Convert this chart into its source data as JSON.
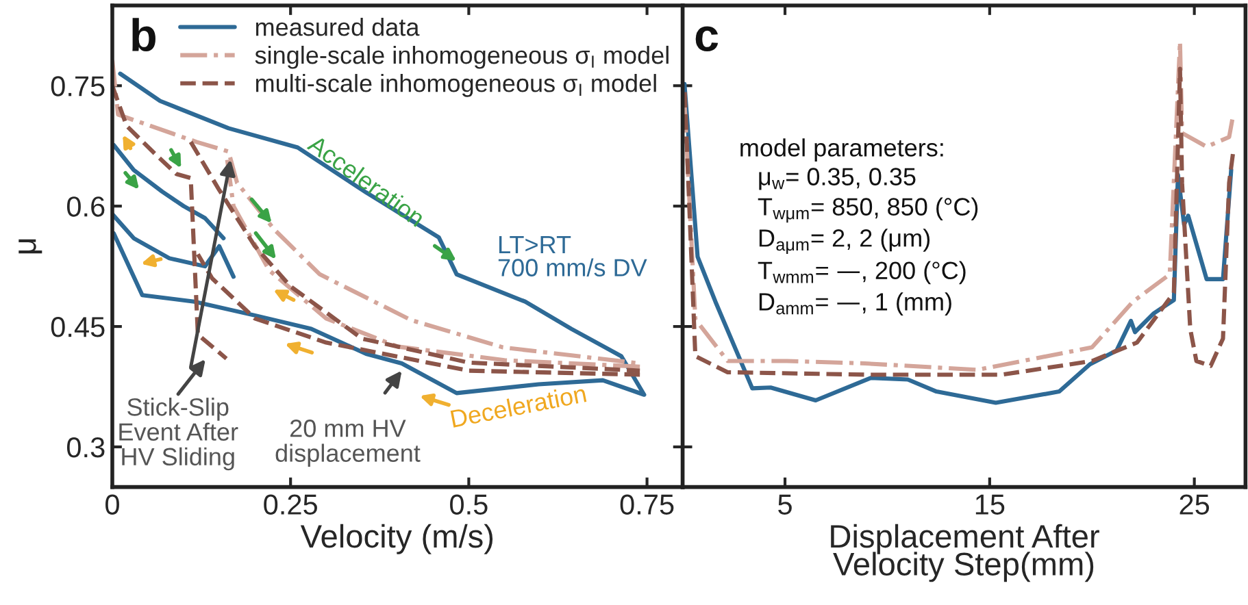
{
  "chart_data": [
    {
      "type": "line",
      "xlabel": "Velocity (m/s)",
      "ylabel": "μ",
      "xlim": [
        0,
        0.8
      ],
      "ylim": [
        0.25,
        0.85
      ],
      "xticks": [
        0,
        0.25,
        0.5,
        0.75
      ],
      "yticks": [
        0.3,
        0.45,
        0.6,
        0.75
      ],
      "legend": "top right",
      "grid": false,
      "annotations": [
        "b",
        "Acceleration",
        "LT>RT\n700 mm/s DV",
        "Deceleration",
        {
          "text": "Stick-Slip\nEvent After\nHV Sliding",
          "x": 0.166,
          "y": 0.658
        },
        {
          "text": "20 mm HV\ndisplacement",
          "x": 0.406,
          "y": 0.395
        }
      ],
      "series": [
        {
          "name": "measured data",
          "color": "#2e6a96",
          "line_style": "solid",
          "x": [
            0.011,
            0.067,
            0.163,
            0.26,
            0.356,
            0.458,
            0.483,
            0.579,
            0.644,
            0.714,
            0.746,
            0.688,
            0.598,
            0.483,
            0.406,
            0.356,
            0.279,
            0.199,
            0.115,
            0.042,
            0.002,
            null,
            0.002,
            0.03,
            0.07,
            0.1,
            0.13,
            0.156,
            null,
            0.0,
            0.03,
            0.08,
            0.13,
            0.15,
            0.17
          ],
          "values": [
            0.765,
            0.731,
            0.697,
            0.673,
            0.617,
            0.561,
            0.515,
            0.481,
            0.447,
            0.413,
            0.365,
            0.383,
            0.378,
            0.367,
            0.404,
            0.416,
            0.447,
            0.464,
            0.481,
            0.489,
            0.566,
            null,
            0.676,
            0.645,
            0.618,
            0.6,
            0.585,
            0.56,
            null,
            0.59,
            0.56,
            0.535,
            0.525,
            0.55,
            0.512
          ]
        },
        {
          "name": "single-scale inhomogeneous σ$_{I}$ model",
          "color": "#d4a59a",
          "line_style": "dashdot",
          "x": [
            0.0,
            0.008,
            0.118,
            0.163,
            0.175,
            0.227,
            0.291,
            0.419,
            0.548,
            0.74,
            null,
            0.74,
            0.55,
            0.4,
            0.3,
            0.22,
            0.17,
            0.16
          ],
          "values": [
            0.782,
            0.714,
            0.68,
            0.668,
            0.629,
            0.571,
            0.515,
            0.458,
            0.424,
            0.404,
            null,
            0.4,
            0.408,
            0.425,
            0.46,
            0.52,
            0.6,
            0.665
          ]
        },
        {
          "name": "multi-scale inhomogeneous σ$_{I}$ model",
          "color": "#8c5549",
          "line_style": "dashed",
          "x": [
            0.0,
            0.02,
            0.06,
            0.09,
            0.11,
            0.12,
            0.16,
            null,
            0.11,
            0.15,
            0.2,
            0.25,
            0.35,
            0.5,
            0.74,
            null,
            0.74,
            0.5,
            0.3,
            0.2,
            0.14,
            0.12
          ],
          "values": [
            0.75,
            0.7,
            0.665,
            0.64,
            0.635,
            0.44,
            0.41,
            null,
            0.68,
            0.62,
            0.55,
            0.5,
            0.435,
            0.405,
            0.395,
            null,
            0.39,
            0.395,
            0.43,
            0.46,
            0.51,
            0.54
          ]
        }
      ]
    },
    {
      "type": "line",
      "xlabel": "Displacement After\nVelocity Step(mm)",
      "xlim": [
        0,
        27.5
      ],
      "ylim": [
        0.25,
        0.85
      ],
      "xticks": [
        5,
        15,
        25
      ],
      "yticks": [
        0.3,
        0.45,
        0.6,
        0.75
      ],
      "tick_labels": "x",
      "legend": false,
      "grid": false,
      "annotations": [
        "c",
        "model parameters:",
        "μ$_{w}$= 0.35, 0.35",
        "T$_{wμm}$= 850, 850 (°C)",
        "D$_{aμm}$= 2, 2 (μm)",
        "T$_{wmm}$= —, 200 (°C)",
        "D$_{amm}$= —, 1 (mm)"
      ],
      "series": [
        {
          "color": "#2e6a96",
          "line_style": "solid",
          "x": [
            0.09,
            0.73,
            1.6,
            3.4,
            4.3,
            6.5,
            9.2,
            11,
            12.4,
            15.3,
            18.4,
            19.9,
            21.2,
            21.9,
            22.1,
            23,
            24,
            24.2,
            24.5,
            24.7,
            25.6,
            26.4,
            26.8
          ],
          "values": [
            0.752,
            0.537,
            0.481,
            0.373,
            0.374,
            0.358,
            0.386,
            0.384,
            0.369,
            0.355,
            0.369,
            0.403,
            0.42,
            0.457,
            0.443,
            0.466,
            0.483,
            0.639,
            0.577,
            0.588,
            0.509,
            0.509,
            0.645
          ]
        },
        {
          "color": "#d4a59a",
          "line_style": "dashdot",
          "x": [
            0.1,
            0.62,
            2.2,
            5.1,
            8.9,
            14.4,
            20,
            22,
            23.8,
            24.3,
            24.4,
            25.6,
            26.7,
            26.9
          ],
          "values": [
            0.725,
            0.459,
            0.407,
            0.407,
            0.404,
            0.396,
            0.424,
            0.481,
            0.515,
            0.805,
            0.691,
            0.674,
            0.686,
            0.714
          ]
        },
        {
          "color": "#8c5549",
          "line_style": "dashed",
          "x": [
            0.1,
            0.62,
            2.2,
            8.9,
            15.6,
            20,
            22.2,
            24,
            24.3,
            24.4,
            24.8,
            25.1,
            25.8,
            26.4,
            26.7,
            26.9
          ],
          "values": [
            0.742,
            0.413,
            0.393,
            0.39,
            0.39,
            0.407,
            0.43,
            0.492,
            0.771,
            0.629,
            0.447,
            0.407,
            0.401,
            0.435,
            0.629,
            0.668
          ]
        }
      ]
    }
  ]
}
